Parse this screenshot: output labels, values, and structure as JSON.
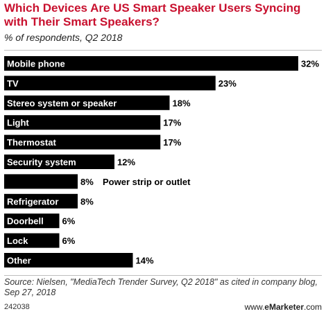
{
  "header": {
    "title": "Which Devices Are US Smart Speaker Users Syncing with Their Smart Speakers?",
    "subtitle": "% of respondents, Q2 2018"
  },
  "chart_data": {
    "type": "bar",
    "orientation": "horizontal",
    "title": "Which Devices Are US Smart Speaker Users Syncing with Their Smart Speakers?",
    "subtitle": "% of respondents, Q2 2018",
    "categories": [
      "Mobile phone",
      "TV",
      "Stereo system or speaker",
      "Light",
      "Thermostat",
      "Security system",
      "Power strip or outlet",
      "Refrigerator",
      "Doorbell",
      "Lock",
      "Other"
    ],
    "values": [
      32,
      23,
      18,
      17,
      17,
      12,
      8,
      8,
      6,
      6,
      14
    ],
    "value_labels": [
      "32%",
      "23%",
      "18%",
      "17%",
      "17%",
      "12%",
      "8%",
      "8%",
      "6%",
      "6%",
      "14%"
    ],
    "xlim": [
      0,
      32
    ],
    "grid": false,
    "bar_color": "#000000",
    "label_color_inside": "#ffffff",
    "label_color_outside": "#000000"
  },
  "footer": {
    "source": "Source: Nielsen, \"MediaTech Trender Survey, Q2 2018\" as cited in company blog, Sep 27, 2018",
    "chart_id": "242038",
    "brand_prefix": "www.",
    "brand_name": "eMarketer",
    "brand_suffix": ".com"
  }
}
